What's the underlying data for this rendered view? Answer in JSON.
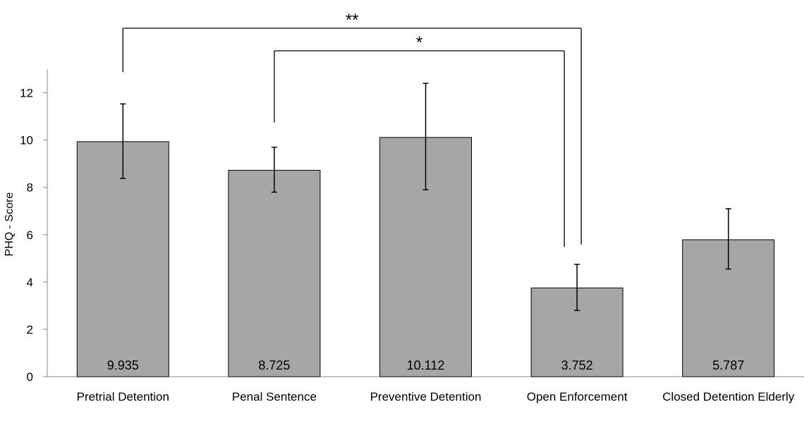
{
  "chart_data": {
    "type": "bar",
    "title": "",
    "xlabel": "",
    "ylabel": "PHQ - Score",
    "ylim": [
      0,
      13
    ],
    "yticks": [
      0,
      2,
      4,
      6,
      8,
      10,
      12
    ],
    "grid": false,
    "legend": "none",
    "bar_color": "#a6a6a6",
    "categories": [
      "Pretrial  Detention",
      "Penal Sentence",
      "Preventive Detention",
      "Open Enforcement",
      "Closed Detention Elderly"
    ],
    "values": [
      9.935,
      8.725,
      10.112,
      3.752,
      5.787
    ],
    "value_labels": [
      "9.935",
      "8.725",
      "10.112",
      "3.752",
      "5.787"
    ],
    "error_low": [
      8.38,
      7.8,
      7.9,
      2.8,
      4.55
    ],
    "error_high": [
      11.53,
      9.7,
      12.4,
      4.75,
      7.1
    ],
    "significance": [
      {
        "from": 0,
        "to": 3,
        "label": "**"
      },
      {
        "from": 1,
        "to": 3,
        "label": "*"
      }
    ]
  }
}
